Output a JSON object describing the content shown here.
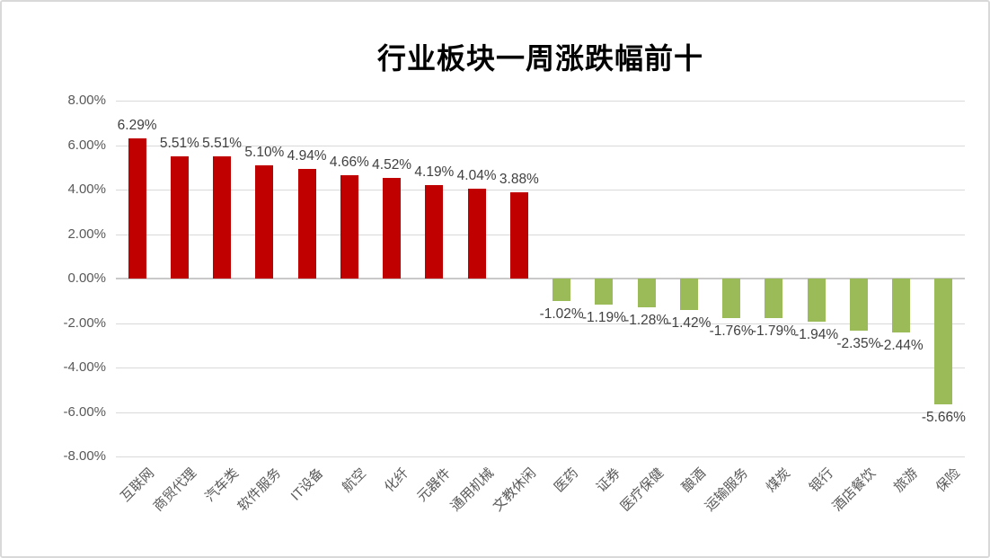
{
  "chart_data": {
    "type": "bar",
    "title": "行业板块一周涨跌幅前十",
    "categories": [
      "互联网",
      "商贸代理",
      "汽车类",
      "软件服务",
      "IT设备",
      "航空",
      "化纤",
      "元器件",
      "通用机械",
      "文教休闲",
      "医药",
      "证券",
      "医疗保健",
      "酿酒",
      "运输服务",
      "煤炭",
      "银行",
      "酒店餐饮",
      "旅游",
      "保险"
    ],
    "values": [
      6.29,
      5.51,
      5.51,
      5.1,
      4.94,
      4.66,
      4.52,
      4.19,
      4.04,
      3.88,
      -1.02,
      -1.19,
      -1.28,
      -1.42,
      -1.76,
      -1.79,
      -1.94,
      -2.35,
      -2.44,
      -5.66
    ],
    "data_labels": [
      "6.29%",
      "5.51%",
      "5.51%",
      "5.10%",
      "4.94%",
      "4.66%",
      "4.52%",
      "4.19%",
      "4.04%",
      "3.88%",
      "-1.02%",
      "-1.19%",
      "-1.28%",
      "-1.42%",
      "-1.76%",
      "-1.79%",
      "-1.94%",
      "-2.35%",
      "-2.44%",
      "-5.66%"
    ],
    "y_ticks": [
      "8.00%",
      "6.00%",
      "4.00%",
      "2.00%",
      "0.00%",
      "-2.00%",
      "-4.00%",
      "-6.00%",
      "-8.00%"
    ],
    "ylim": [
      -8,
      8
    ],
    "xlabel": "",
    "ylabel": "",
    "grid": true,
    "legend": "none",
    "colors": {
      "positive_bar": "#c00000",
      "negative_bar": "#9bbb59",
      "gridline": "#d9d9d9",
      "zero_line": "#c9c9c9",
      "tick_text": "#595959",
      "data_label_text": "#404040",
      "title_text": "#000000",
      "frame_border": "#d9d9d9"
    }
  }
}
